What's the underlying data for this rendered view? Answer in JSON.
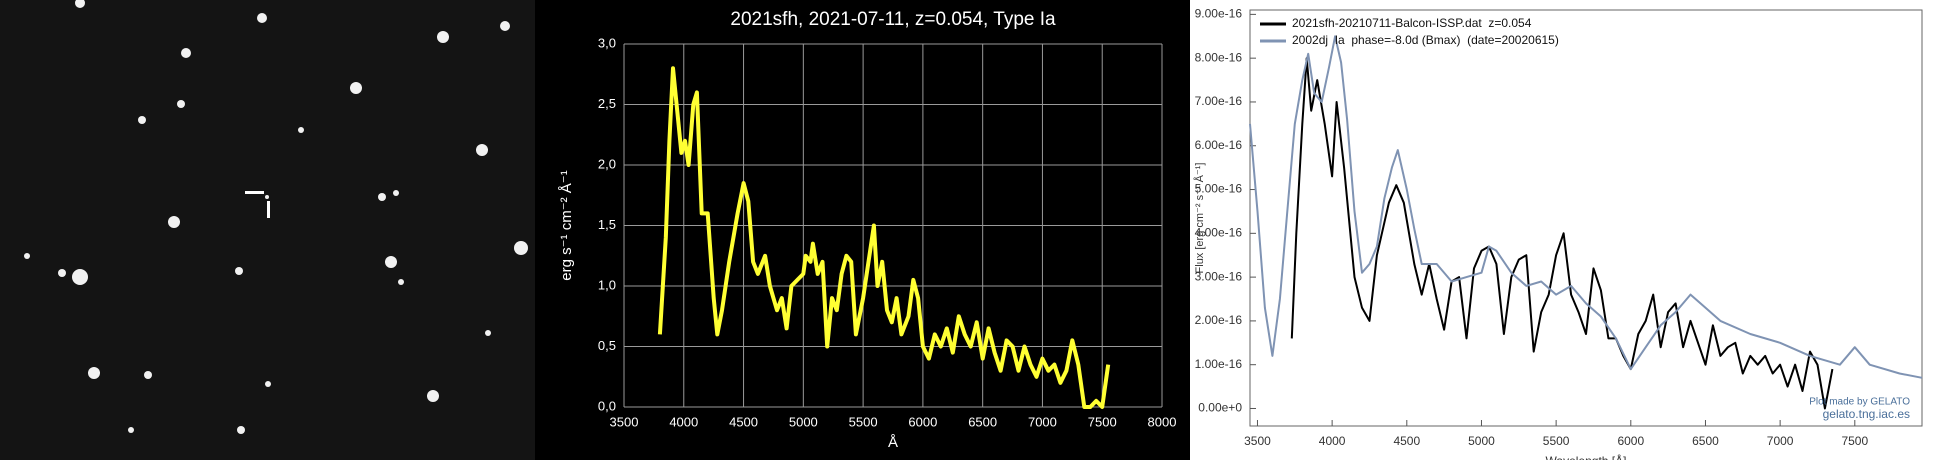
{
  "chart_data": [
    {
      "type": "line",
      "title": "2021sfh, 2021-07-11, z=0.054, Type Ia",
      "x_label": "Å",
      "y_label": "erg s⁻¹ cm⁻² Å⁻¹",
      "color": "#ffff33",
      "grid": true,
      "xlim": [
        3500,
        8000
      ],
      "xticks": [
        3500,
        4000,
        4500,
        5000,
        5500,
        6000,
        6500,
        7000,
        7500,
        8000
      ],
      "ylim": [
        0,
        3
      ],
      "yticks": [
        {
          "value": 0,
          "label": "0,0"
        },
        {
          "value": 0.5,
          "label": "0,5"
        },
        {
          "value": 1,
          "label": "1,0"
        },
        {
          "value": 1.5,
          "label": "1,5"
        },
        {
          "value": 2,
          "label": "2,0"
        },
        {
          "value": 2.5,
          "label": "2,5"
        },
        {
          "value": 3,
          "label": "3,0"
        }
      ],
      "x": [
        3800,
        3850,
        3880,
        3910,
        3950,
        3980,
        4010,
        4040,
        4080,
        4110,
        4150,
        4200,
        4250,
        4280,
        4320,
        4380,
        4450,
        4500,
        4540,
        4580,
        4620,
        4680,
        4720,
        4780,
        4820,
        4860,
        4900,
        4950,
        5000,
        5020,
        5060,
        5080,
        5120,
        5160,
        5200,
        5240,
        5280,
        5320,
        5360,
        5400,
        5440,
        5500,
        5560,
        5590,
        5620,
        5660,
        5700,
        5740,
        5780,
        5820,
        5880,
        5920,
        5960,
        6000,
        6050,
        6100,
        6150,
        6200,
        6250,
        6300,
        6350,
        6400,
        6450,
        6500,
        6550,
        6600,
        6650,
        6700,
        6750,
        6800,
        6850,
        6900,
        6950,
        7000,
        7050,
        7100,
        7150,
        7200,
        7250,
        7300,
        7350,
        7400,
        7450,
        7500,
        7550
      ],
      "values": [
        0.6,
        1.4,
        2.2,
        2.8,
        2.4,
        2.1,
        2.2,
        2.0,
        2.5,
        2.6,
        1.6,
        1.6,
        0.9,
        0.6,
        0.8,
        1.2,
        1.6,
        1.85,
        1.7,
        1.2,
        1.1,
        1.25,
        1.0,
        0.8,
        0.9,
        0.65,
        1.0,
        1.05,
        1.1,
        1.25,
        1.2,
        1.35,
        1.1,
        1.2,
        0.5,
        0.9,
        0.8,
        1.1,
        1.25,
        1.2,
        0.6,
        0.9,
        1.3,
        1.5,
        1.0,
        1.2,
        0.8,
        0.7,
        0.9,
        0.6,
        0.75,
        1.05,
        0.9,
        0.5,
        0.4,
        0.6,
        0.5,
        0.65,
        0.45,
        0.75,
        0.6,
        0.5,
        0.7,
        0.4,
        0.65,
        0.45,
        0.3,
        0.55,
        0.5,
        0.3,
        0.5,
        0.35,
        0.25,
        0.4,
        0.3,
        0.35,
        0.2,
        0.3,
        0.55,
        0.35,
        0.0,
        0.0,
        0.05,
        0.0,
        0.35
      ]
    },
    {
      "type": "line",
      "x_label": "Wavelength [Å]",
      "y_label": "Flux [erg cm⁻² s⁻¹ Å⁻¹]",
      "legend": "upper left",
      "grid": false,
      "annotations": [
        "Plot made by GELATO",
        "gelato.tng.iac.es"
      ],
      "xlim": [
        3450,
        7950
      ],
      "xticks": [
        3500,
        4000,
        4500,
        5000,
        5500,
        6000,
        6500,
        7000,
        7500
      ],
      "ylim": [
        -4e-17,
        9.1e-16
      ],
      "yticks": [
        {
          "value": 0,
          "label": "0.00e+0"
        },
        {
          "value": 1e-16,
          "label": "1.00e-16"
        },
        {
          "value": 2e-16,
          "label": "2.00e-16"
        },
        {
          "value": 3e-16,
          "label": "3.00e-16"
        },
        {
          "value": 4e-16,
          "label": "4.00e-16"
        },
        {
          "value": 5e-16,
          "label": "5.00e-16"
        },
        {
          "value": 6e-16,
          "label": "6.00e-16"
        },
        {
          "value": 7e-16,
          "label": "7.00e-16"
        },
        {
          "value": 8e-16,
          "label": "8.00e-16"
        },
        {
          "value": 9e-16,
          "label": "9.00e-16"
        }
      ],
      "series": [
        {
          "name": "2021sfh-20210711-Balcon-ISSP.dat  z=0.054",
          "color": "#000000",
          "x": [
            3730,
            3760,
            3800,
            3830,
            3860,
            3900,
            3950,
            4000,
            4030,
            4080,
            4150,
            4200,
            4250,
            4300,
            4380,
            4430,
            4480,
            4550,
            4600,
            4650,
            4700,
            4750,
            4800,
            4850,
            4900,
            4950,
            5000,
            5050,
            5100,
            5150,
            5200,
            5250,
            5300,
            5350,
            5400,
            5450,
            5500,
            5550,
            5600,
            5650,
            5700,
            5750,
            5800,
            5850,
            5900,
            5950,
            6000,
            6050,
            6100,
            6150,
            6200,
            6250,
            6300,
            6350,
            6400,
            6450,
            6500,
            6550,
            6600,
            6650,
            6700,
            6750,
            6800,
            6850,
            6900,
            6950,
            7000,
            7050,
            7100,
            7150,
            7200,
            7250,
            7300,
            7350
          ],
          "values": [
            1.6e-16,
            4e-16,
            6.5e-16,
            8e-16,
            6.8e-16,
            7.5e-16,
            6.5e-16,
            5.3e-16,
            7e-16,
            5.5e-16,
            3e-16,
            2.3e-16,
            2e-16,
            3.5e-16,
            4.7e-16,
            5.1e-16,
            4.7e-16,
            3.3e-16,
            2.6e-16,
            3.3e-16,
            2.5e-16,
            1.8e-16,
            2.9e-16,
            3e-16,
            1.6e-16,
            3.2e-16,
            3.6e-16,
            3.7e-16,
            3.3e-16,
            1.7e-16,
            3e-16,
            3.4e-16,
            3.5e-16,
            1.3e-16,
            2.2e-16,
            2.6e-16,
            3.5e-16,
            4e-16,
            2.6e-16,
            2.2e-16,
            1.7e-16,
            3.2e-16,
            2.7e-16,
            1.6e-16,
            1.6e-16,
            1.2e-16,
            9e-17,
            1.7e-16,
            2e-16,
            2.6e-16,
            1.4e-16,
            2.2e-16,
            2.4e-16,
            1.4e-16,
            2e-16,
            1.5e-16,
            1e-16,
            1.9e-16,
            1.2e-16,
            1.4e-16,
            1.5e-16,
            8e-17,
            1.2e-16,
            1e-16,
            1.2e-16,
            8e-17,
            1e-16,
            5e-17,
            1e-16,
            4e-17,
            1.3e-16,
            1e-16,
            0,
            9e-17
          ]
        },
        {
          "name": "2002dj  Ia  phase=-8.0d (Bmax)  (date=20020615)",
          "color": "#7f93b3",
          "x": [
            3450,
            3500,
            3550,
            3600,
            3650,
            3700,
            3750,
            3800,
            3840,
            3880,
            3930,
            3980,
            4020,
            4060,
            4100,
            4150,
            4200,
            4250,
            4300,
            4350,
            4400,
            4440,
            4500,
            4550,
            4600,
            4700,
            4800,
            4900,
            5000,
            5050,
            5100,
            5200,
            5300,
            5400,
            5500,
            5600,
            5700,
            5800,
            5900,
            6000,
            6100,
            6200,
            6300,
            6400,
            6500,
            6600,
            6800,
            7000,
            7200,
            7400,
            7500,
            7600,
            7800,
            7950
          ],
          "values": [
            6.5e-16,
            4.5e-16,
            2.3e-16,
            1.2e-16,
            2.5e-16,
            4.5e-16,
            6.5e-16,
            7.5e-16,
            8.1e-16,
            7.2e-16,
            7e-16,
            7.8e-16,
            8.5e-16,
            7.9e-16,
            6.6e-16,
            4.5e-16,
            3.1e-16,
            3.3e-16,
            3.7e-16,
            4.8e-16,
            5.5e-16,
            5.9e-16,
            5e-16,
            4.1e-16,
            3.3e-16,
            3.3e-16,
            2.9e-16,
            3e-16,
            3.1e-16,
            3.7e-16,
            3.6e-16,
            3.1e-16,
            2.8e-16,
            2.9e-16,
            2.6e-16,
            2.8e-16,
            2.4e-16,
            2.1e-16,
            1.6e-16,
            9e-17,
            1.4e-16,
            1.9e-16,
            2.2e-16,
            2.6e-16,
            2.3e-16,
            2e-16,
            1.7e-16,
            1.5e-16,
            1.2e-16,
            1e-16,
            1.4e-16,
            1e-16,
            8e-17,
            7e-17
          ]
        }
      ]
    }
  ]
}
